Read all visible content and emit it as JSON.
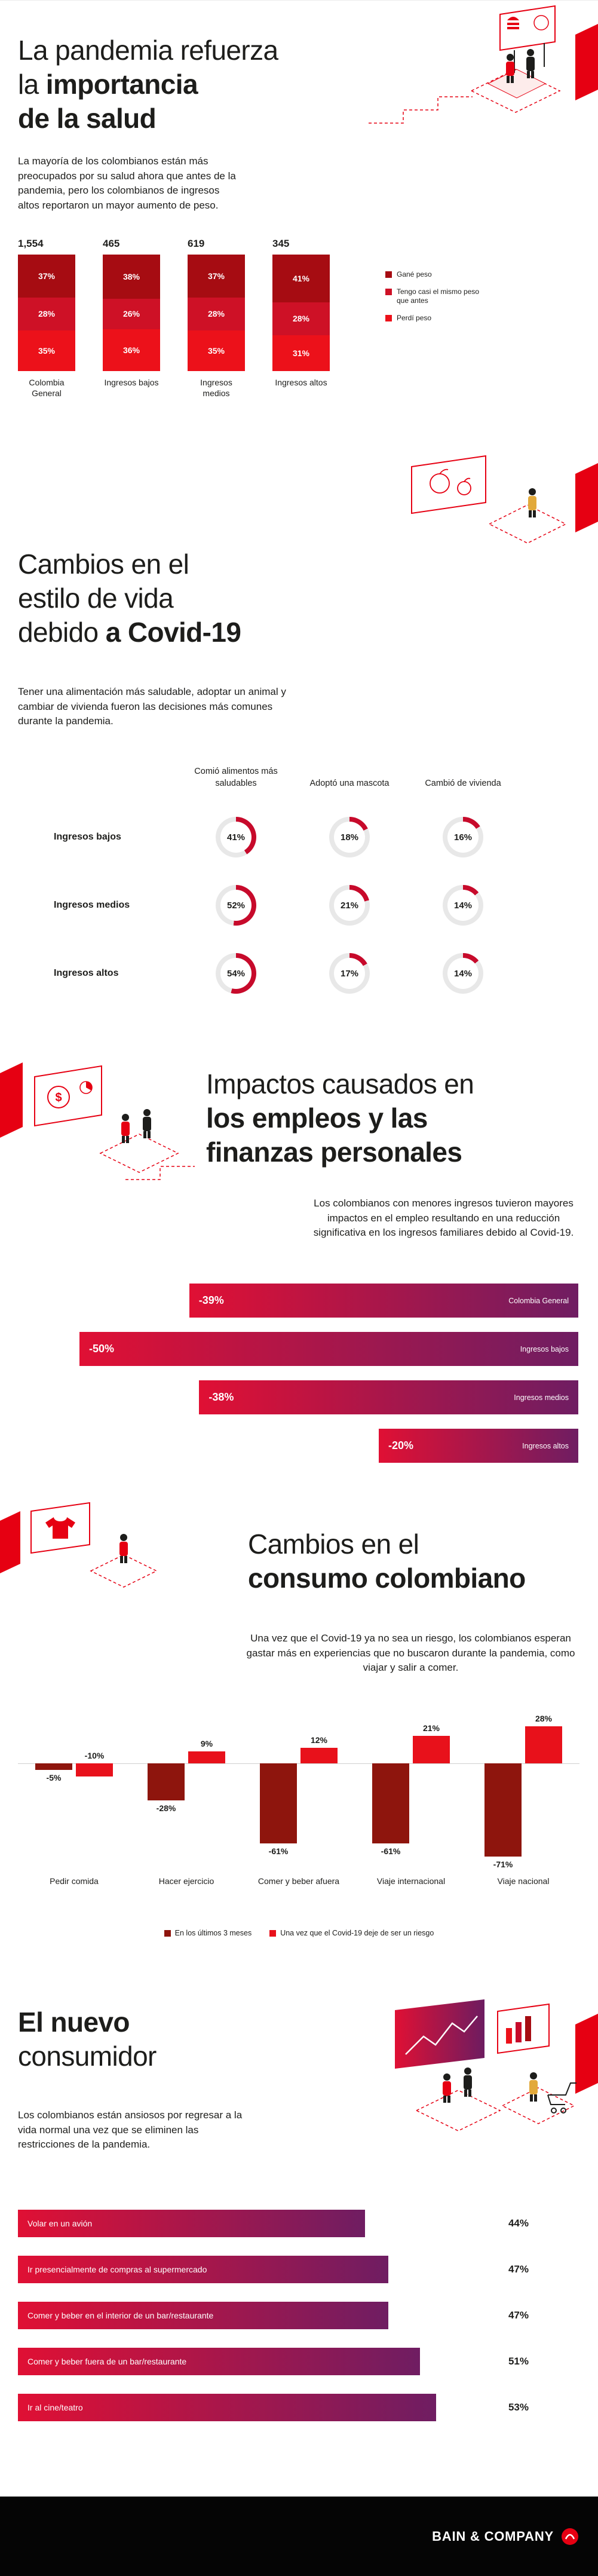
{
  "page": {
    "background": "#ffffff",
    "accent_red": "#e60012",
    "text_color": "#1d1d1b"
  },
  "s1": {
    "title_l1": "La pandemia refuerza",
    "title_l2a": "la ",
    "title_l2b": "importancia",
    "title_l3": "de la salud",
    "intro": "La mayoría de los colombianos están más preocupados por su salud ahora que antes de la pandemia, pero los colombianos de ingresos altos reportaron un mayor aumento de peso."
  },
  "s2": {
    "title_l1": "Cambios en el",
    "title_l2": "estilo de vida",
    "title_l3a": "debido ",
    "title_l3b": "a Covid-19",
    "intro": "Tener una alimentación más saludable, adoptar un animal y cambiar de vivienda fueron las decisiones más comunes durante la pandemia."
  },
  "s3": {
    "title_l1": "Impactos causados en",
    "title_l2": "los empleos y las",
    "title_l3": "finanzas personales",
    "intro": "Los colombianos con menores ingresos tuvieron mayores impactos en el empleo resultando en una reducción significativa en los ingresos familiares debido al Covid-19."
  },
  "s4": {
    "title_l1": "Cambios en el",
    "title_l2": "consumo colombiano",
    "intro": "Una vez que el Covid-19 ya no sea un riesgo, los colombianos esperan gastar más en experiencias que no buscaron durante la pandemia, como viajar y salir a comer."
  },
  "s5": {
    "title_l1": "El nuevo",
    "title_l2": "consumidor",
    "intro": "Los colombianos están ansiosos por regresar a la vida normal una vez que se eliminen las restricciones de la pandemia."
  },
  "footer": {
    "brand": "BAIN & COMPANY"
  },
  "chart_data": [
    {
      "id": "weight_change",
      "type": "bar",
      "subtype": "stacked-vertical",
      "unit": "%",
      "totals": [
        "1,554",
        "465",
        "619",
        "345"
      ],
      "categories": [
        "Colombia General",
        "Ingresos bajos",
        "Ingresos medios",
        "Ingresos altos"
      ],
      "series": [
        {
          "name": "Gané peso",
          "color": "#a60c12",
          "values": [
            37,
            38,
            37,
            41
          ]
        },
        {
          "name": "Tengo casi el mismo peso que antes",
          "color": "#ce1126",
          "values": [
            28,
            26,
            28,
            28
          ]
        },
        {
          "name": "Perdí peso",
          "color": "#ec111a",
          "values": [
            35,
            36,
            35,
            31
          ]
        }
      ]
    },
    {
      "id": "lifestyle_changes",
      "type": "donut-grid",
      "unit": "%",
      "accent": "#c70a2b",
      "track": "#e8e8e8",
      "columns": [
        "Comió alimentos más saludables",
        "Adoptó una mascota",
        "Cambió de vivienda"
      ],
      "rows": [
        {
          "label": "Ingresos bajos",
          "values": [
            41,
            18,
            16
          ]
        },
        {
          "label": "Ingresos medios",
          "values": [
            52,
            21,
            14
          ]
        },
        {
          "label": "Ingresos altos",
          "values": [
            54,
            17,
            14
          ]
        }
      ]
    },
    {
      "id": "income_impact",
      "type": "bar",
      "subtype": "horizontal",
      "unit": "%",
      "gradient": [
        "#e01034",
        "#6f1d62"
      ],
      "rows": [
        {
          "label": "Colombia General",
          "value": -39,
          "display": "-39%"
        },
        {
          "label": "Ingresos bajos",
          "value": -50,
          "display": "-50%"
        },
        {
          "label": "Ingresos medios",
          "value": -38,
          "display": "-38%"
        },
        {
          "label": "Ingresos altos",
          "value": -20,
          "display": "-20%"
        }
      ]
    },
    {
      "id": "consumption_changes",
      "type": "bar",
      "subtype": "grouped-vertical",
      "unit": "%",
      "categories": [
        "Pedir comida",
        "Hacer ejercicio",
        "Comer y beber afuera",
        "Viaje internacional",
        "Viaje nacional"
      ],
      "series": [
        {
          "name": "En los últimos 3 meses",
          "color": "#8e150d",
          "values": [
            -5,
            -28,
            -61,
            -61,
            -71
          ]
        },
        {
          "name": "Una vez que el Covid-19 deje de ser un riesgo",
          "color": "#e8111b",
          "values": [
            -10,
            9,
            12,
            21,
            28
          ]
        }
      ]
    },
    {
      "id": "new_consumer_desires",
      "type": "bar",
      "subtype": "horizontal",
      "unit": "%",
      "gradient": [
        "#e01034",
        "#6f1d62"
      ],
      "rows": [
        {
          "label": "Volar en un avión",
          "value": 44,
          "display": "44%"
        },
        {
          "label": "Ir presencialmente de compras al supermercado",
          "value": 47,
          "display": "47%"
        },
        {
          "label": "Comer y beber en el interior de un bar/restaurante",
          "value": 47,
          "display": "47%"
        },
        {
          "label": "Comer y beber fuera de un bar/restaurante",
          "value": 51,
          "display": "51%"
        },
        {
          "label": "Ir al cine/teatro",
          "value": 53,
          "display": "53%"
        }
      ]
    }
  ]
}
